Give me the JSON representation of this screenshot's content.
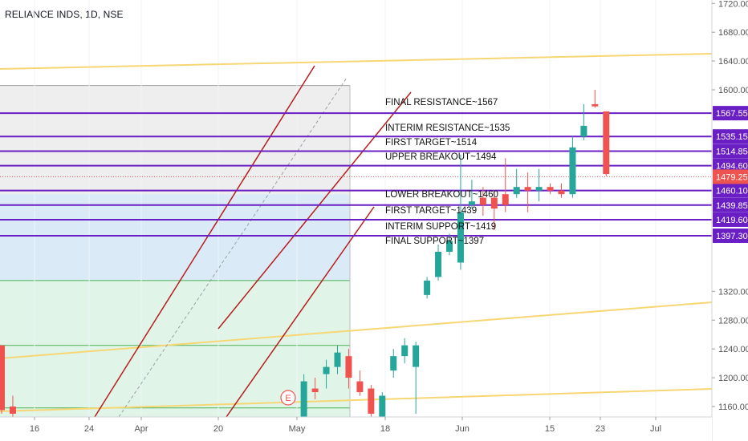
{
  "header": {
    "symbol": "RELIANCE INDS, 1D, NSE"
  },
  "colors": {
    "up": "#26a69a",
    "down": "#ef5350",
    "level": "#6a1fc4",
    "trend": "#b71c1c",
    "yellow": "#f7d774",
    "price_tag": "#ef5350",
    "zone_gray": "#e8e8e8",
    "zone_blue": "#d3e7f6",
    "zone_green": "#daf3e4"
  },
  "chart_data": {
    "type": "candlestick",
    "title": "RELIANCE INDS, 1D, NSE",
    "y_axis": {
      "ticks": [
        "1720.00",
        "1680.00",
        "1640.00",
        "1600.00",
        "1320.00",
        "1280.00",
        "1240.00",
        "1200.00",
        "1160.00"
      ],
      "range": [
        1150,
        1730
      ]
    },
    "x_axis": {
      "ticks": [
        "16",
        "24",
        "Apr",
        "20",
        "May",
        "18",
        "Jun",
        "15",
        "23",
        "Jul"
      ]
    },
    "levels": [
      {
        "label": "FINAL RESISTANCE~1567",
        "price": 1567.55,
        "tag": "1567.55"
      },
      {
        "label": "INTERIM RESISTANCE~1535",
        "price": 1535.15,
        "tag": "1535.15"
      },
      {
        "label": "FIRST TARGET~1514",
        "price": 1514.85,
        "tag": "1514.85"
      },
      {
        "label": "UPPER BREAKOUT~1494",
        "price": 1494.6,
        "tag": "1494.60"
      },
      {
        "label": "LOWER BREAKOUT~1460",
        "price": 1460.1,
        "tag": "1460.10"
      },
      {
        "label": "FIRST TARGET~1439",
        "price": 1439.85,
        "tag": "1439.85"
      },
      {
        "label": "INTERIM SUPPORT~1419",
        "price": 1419.6,
        "tag": "1419.60"
      },
      {
        "label": "FINAL SUPPORT~1397",
        "price": 1397.3,
        "tag": "1397.30"
      }
    ],
    "last_price": {
      "price": 1479.25,
      "tag": "1479.25"
    },
    "earnings_marker": "E",
    "candles": [
      {
        "i": 0,
        "o": 1245,
        "h": 1240,
        "l": 1150,
        "c": 1155
      },
      {
        "i": 1,
        "o": 1160,
        "h": 1175,
        "l": 1145,
        "c": 1150
      },
      {
        "i": 27,
        "o": 1130,
        "h": 1205,
        "l": 1120,
        "c": 1195
      },
      {
        "i": 28,
        "o": 1185,
        "h": 1200,
        "l": 1170,
        "c": 1180
      },
      {
        "i": 29,
        "o": 1205,
        "h": 1225,
        "l": 1185,
        "c": 1215
      },
      {
        "i": 30,
        "o": 1215,
        "h": 1245,
        "l": 1205,
        "c": 1235
      },
      {
        "i": 31,
        "o": 1230,
        "h": 1240,
        "l": 1185,
        "c": 1200
      },
      {
        "i": 32,
        "o": 1195,
        "h": 1210,
        "l": 1175,
        "c": 1180
      },
      {
        "i": 33,
        "o": 1185,
        "h": 1190,
        "l": 1140,
        "c": 1150
      },
      {
        "i": 34,
        "o": 1145,
        "h": 1180,
        "l": 1130,
        "c": 1175
      },
      {
        "i": 35,
        "o": 1210,
        "h": 1240,
        "l": 1200,
        "c": 1230
      },
      {
        "i": 36,
        "o": 1230,
        "h": 1255,
        "l": 1220,
        "c": 1245
      },
      {
        "i": 37,
        "o": 1215,
        "h": 1250,
        "l": 1150,
        "c": 1245
      },
      {
        "i": 38,
        "o": 1315,
        "h": 1340,
        "l": 1310,
        "c": 1335
      },
      {
        "i": 39,
        "o": 1340,
        "h": 1385,
        "l": 1335,
        "c": 1375
      },
      {
        "i": 40,
        "o": 1375,
        "h": 1400,
        "l": 1370,
        "c": 1390
      },
      {
        "i": 41,
        "o": 1360,
        "h": 1510,
        "l": 1350,
        "c": 1430
      },
      {
        "i": 42,
        "o": 1440,
        "h": 1475,
        "l": 1435,
        "c": 1445
      },
      {
        "i": 43,
        "o": 1450,
        "h": 1465,
        "l": 1425,
        "c": 1440
      },
      {
        "i": 44,
        "o": 1450,
        "h": 1460,
        "l": 1405,
        "c": 1435
      },
      {
        "i": 45,
        "o": 1455,
        "h": 1505,
        "l": 1430,
        "c": 1440
      },
      {
        "i": 46,
        "o": 1455,
        "h": 1490,
        "l": 1450,
        "c": 1465
      },
      {
        "i": 47,
        "o": 1465,
        "h": 1485,
        "l": 1430,
        "c": 1460
      },
      {
        "i": 48,
        "o": 1460,
        "h": 1490,
        "l": 1445,
        "c": 1465
      },
      {
        "i": 49,
        "o": 1465,
        "h": 1470,
        "l": 1455,
        "c": 1460
      },
      {
        "i": 50,
        "o": 1460,
        "h": 1470,
        "l": 1450,
        "c": 1455
      },
      {
        "i": 51,
        "o": 1455,
        "h": 1535,
        "l": 1450,
        "c": 1520
      },
      {
        "i": 52,
        "o": 1535,
        "h": 1580,
        "l": 1530,
        "c": 1550
      },
      {
        "i": 53,
        "o": 1580,
        "h": 1600,
        "l": 1575,
        "c": 1577
      },
      {
        "i": 54,
        "o": 1570,
        "h": 1570,
        "l": 1480,
        "c": 1483
      }
    ]
  }
}
